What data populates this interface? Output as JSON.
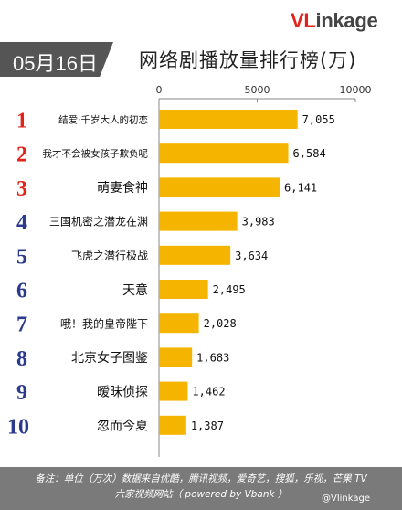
{
  "logo": {
    "prefix": "VL",
    "suffix": "inkage"
  },
  "date": "05月16日",
  "title": "网络剧播放量排行榜(万)",
  "chart_data": {
    "type": "bar",
    "orientation": "horizontal",
    "categories": [
      "结爱·千岁大人的初恋",
      "我才不会被女孩子欺负呢",
      "萌妻食神",
      "三国机密之潜龙在渊",
      "飞虎之潜行极战",
      "天意",
      "哦！我的皇帝陛下",
      "北京女子图鉴",
      "暧昧侦探",
      "忽而今夏"
    ],
    "ranks": [
      "1",
      "2",
      "3",
      "4",
      "5",
      "6",
      "7",
      "8",
      "9",
      "10"
    ],
    "values": [
      7055,
      6584,
      6141,
      3983,
      3634,
      2495,
      2028,
      1683,
      1462,
      1387
    ],
    "value_labels": [
      "7,055",
      "6,584",
      "6,141",
      "3,983",
      "3,634",
      "2,495",
      "2,028",
      "1,683",
      "1,462",
      "1,387"
    ],
    "xticks": [
      "0",
      "5000",
      "10000"
    ],
    "xlim": [
      0,
      10000
    ],
    "bar_color": "#f5b400",
    "rank_top_color": "#e2231a",
    "rank_color": "#2b3a8c"
  },
  "footer": {
    "line1": "备注：单位（万次）数据来自优酷，腾讯视频，爱奇艺，搜狐，乐视，芒果 TV",
    "line2": "六家视频网站（ powered by Vbank ）"
  },
  "watermark": "@Vlinkage"
}
